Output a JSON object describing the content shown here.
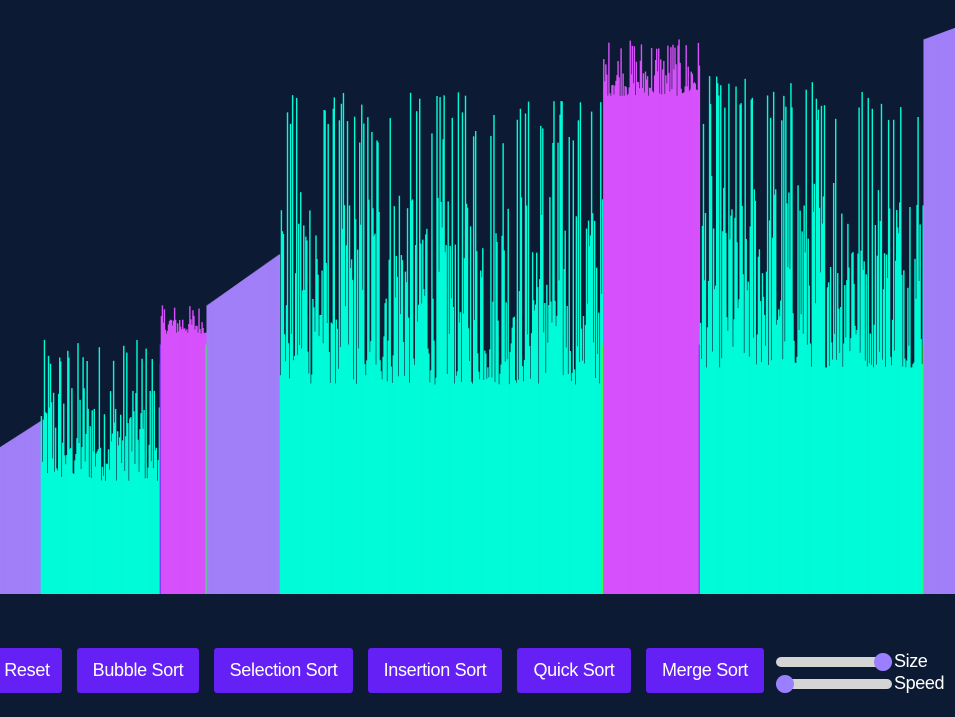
{
  "controls": {
    "reset_label": "Reset",
    "bubble_label": "Bubble Sort",
    "selection_label": "Selection Sort",
    "insertion_label": "Insertion Sort",
    "quick_label": "Quick Sort",
    "merge_label": "Merge Sort"
  },
  "sliders": {
    "size": {
      "label": "Size",
      "value": 1.0
    },
    "speed": {
      "label": "Speed",
      "value": 0.0
    }
  },
  "colors": {
    "background": "#0c1a33",
    "bar_sorted": "#a07ff8",
    "bar_partition": "#00fbd8",
    "bar_pivot_group": "#d651fb",
    "bar_active": "#33ff33",
    "bar_marker": "#6633ff",
    "button": "#6420f5"
  },
  "bars": {
    "segments": [
      {
        "kind": "sorted",
        "count": 40,
        "from": 0.26,
        "to": 0.305
      },
      {
        "kind": "partition",
        "count": 118,
        "min": 0.2,
        "max": 0.45
      },
      {
        "kind": "pivot_group",
        "count": 45,
        "min": 0.46,
        "max": 0.51
      },
      {
        "kind": "sorted",
        "count": 72,
        "from": 0.51,
        "to": 0.6
      },
      {
        "kind": "partition",
        "count": 318,
        "min": 0.37,
        "max": 0.89
      },
      {
        "kind": "pivot_group",
        "count": 95,
        "min": 0.88,
        "max": 0.98
      },
      {
        "kind": "partition",
        "count": 220,
        "min": 0.4,
        "max": 0.92
      },
      {
        "kind": "sorted",
        "count": 31,
        "from": 0.98,
        "to": 1.0
      }
    ]
  }
}
